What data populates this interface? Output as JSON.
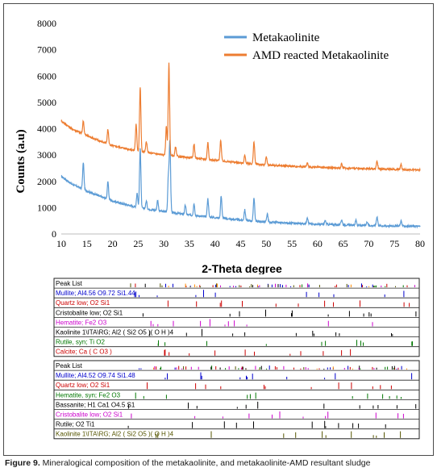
{
  "chart_data": [
    {
      "type": "line",
      "title": "",
      "xlabel": "2-Theta degree",
      "ylabel": "Counts (a.u)",
      "xlim": [
        10,
        80
      ],
      "ylim": [
        0,
        8000
      ],
      "xticks": [
        10,
        15,
        20,
        25,
        30,
        35,
        40,
        45,
        50,
        55,
        60,
        65,
        70,
        75,
        80
      ],
      "yticks": [
        0,
        1000,
        2000,
        3000,
        4000,
        5000,
        6000,
        7000,
        8000
      ],
      "legend_position": "top-right",
      "grid": false,
      "series": [
        {
          "name": "Metakaolinite",
          "color": "#5b9bd5",
          "baseline": [
            [
              10,
              2200
            ],
            [
              12,
              1900
            ],
            [
              16,
              1550
            ],
            [
              20,
              1250
            ],
            [
              25,
              1000
            ],
            [
              30,
              850
            ],
            [
              35,
              720
            ],
            [
              40,
              620
            ],
            [
              45,
              530
            ],
            [
              50,
              450
            ],
            [
              60,
              370
            ],
            [
              70,
              320
            ],
            [
              80,
              290
            ]
          ],
          "peaks": [
            [
              14.3,
              1000
            ],
            [
              19.1,
              650
            ],
            [
              24.8,
              550
            ],
            [
              25.4,
              2300
            ],
            [
              26.6,
              300
            ],
            [
              28.8,
              400
            ],
            [
              30.9,
              1350
            ],
            [
              31.2,
              2650
            ],
            [
              34.2,
              350
            ],
            [
              35.9,
              450
            ],
            [
              38.6,
              700
            ],
            [
              41.2,
              850
            ],
            [
              45.8,
              400
            ],
            [
              47.6,
              900
            ],
            [
              50.2,
              300
            ],
            [
              58.0,
              250
            ],
            [
              61.5,
              150
            ],
            [
              64.7,
              200
            ],
            [
              67.5,
              200
            ],
            [
              69.7,
              150
            ],
            [
              71.6,
              350
            ],
            [
              76.3,
              200
            ]
          ]
        },
        {
          "name": "AMD reacted Metakaolinite",
          "color": "#ed7d31",
          "baseline": [
            [
              10,
              4300
            ],
            [
              12,
              4000
            ],
            [
              16,
              3650
            ],
            [
              20,
              3350
            ],
            [
              25,
              3150
            ],
            [
              30,
              3000
            ],
            [
              35,
              2900
            ],
            [
              40,
              2800
            ],
            [
              45,
              2700
            ],
            [
              50,
              2620
            ],
            [
              60,
              2530
            ],
            [
              70,
              2480
            ],
            [
              80,
              2430
            ]
          ],
          "peaks": [
            [
              14.3,
              500
            ],
            [
              19.1,
              550
            ],
            [
              24.6,
              1000
            ],
            [
              25.4,
              2450
            ],
            [
              26.6,
              400
            ],
            [
              30.5,
              1100
            ],
            [
              31.0,
              3500
            ],
            [
              32.3,
              350
            ],
            [
              35.9,
              550
            ],
            [
              38.6,
              650
            ],
            [
              41.1,
              800
            ],
            [
              45.8,
              300
            ],
            [
              47.6,
              850
            ],
            [
              50.0,
              300
            ],
            [
              58.0,
              150
            ],
            [
              64.7,
              150
            ],
            [
              71.6,
              300
            ],
            [
              76.3,
              200
            ]
          ]
        }
      ]
    },
    {
      "type": "table",
      "panels": [
        {
          "rows": [
            {
              "label": "Peak List",
              "color": "#000000"
            },
            {
              "label": "Mullite; Al4.56 O9.72 Si1.44",
              "color": "#0000cc"
            },
            {
              "label": "Quartz low; O2 Si1",
              "color": "#cc0000"
            },
            {
              "label": "Cristobalite low; O2 Si1",
              "color": "#000000"
            },
            {
              "label": "Hematite; Fe2 O3",
              "color": "#cc00cc"
            },
            {
              "label": "Kaolinite 1\\ITA\\RG; Al2 ( Si2 O5 )( O H )4",
              "color": "#000000"
            },
            {
              "label": "Rutile, syn; Ti O2",
              "color": "#007700"
            },
            {
              "label": "Calcite; Ca ( C O3 )",
              "color": "#cc0000"
            }
          ]
        },
        {
          "rows": [
            {
              "label": "Peak List",
              "color": "#000000"
            },
            {
              "label": "Mullite; Al4.52 O9.74 Si1.48",
              "color": "#0000cc"
            },
            {
              "label": "Quartz low; O2 Si1",
              "color": "#cc0000"
            },
            {
              "label": "Hematite, syn; Fe2 O3",
              "color": "#007700"
            },
            {
              "label": "Bassanite; H1 Ca1 O4.5 S1",
              "color": "#000000"
            },
            {
              "label": "Cristobalite low; O2 Si1",
              "color": "#cc00cc"
            },
            {
              "label": "Rutile; O2 Ti1",
              "color": "#000000"
            },
            {
              "label": "Kaolinite 1\\ITA\\RG; Al2 ( Si2 O5 )( O H )4",
              "color": "#555500"
            }
          ]
        }
      ]
    }
  ],
  "caption": {
    "label": "Figure 9.",
    "text": " Mineralogical composition of the metakaolinite, and metakaolinite-AMD resultant sludge"
  }
}
